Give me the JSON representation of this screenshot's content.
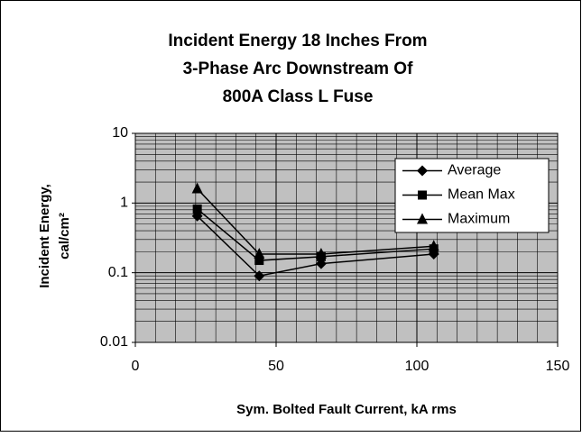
{
  "chart_data": {
    "type": "line",
    "title": [
      "Incident Energy 18 Inches From",
      "3-Phase Arc Downstream Of",
      "800A Class L Fuse"
    ],
    "xlabel": "Sym. Bolted Fault Current, kA rms",
    "ylabel": [
      "Incident Energy,",
      "cal/cm²"
    ],
    "x": [
      22,
      44,
      66,
      106
    ],
    "series": [
      {
        "name": "Average",
        "color": "#000000",
        "marker": "diamond",
        "values": [
          0.65,
          0.09,
          0.135,
          0.185
        ]
      },
      {
        "name": "Mean Max",
        "color": "#000000",
        "marker": "square",
        "values": [
          0.82,
          0.15,
          0.17,
          0.22
        ]
      },
      {
        "name": "Maximum",
        "color": "#000000",
        "marker": "triangle",
        "values": [
          1.6,
          0.185,
          0.185,
          0.24
        ]
      }
    ],
    "xlim": [
      0,
      150
    ],
    "xticks": [
      0,
      50,
      100,
      150
    ],
    "ylim": [
      0.01,
      10
    ],
    "yticks": [
      0.01,
      0.1,
      1,
      10
    ],
    "ylog": true,
    "grid": true,
    "minor_grid": true,
    "plot_background": "#c0c0c0",
    "legend": "upper right"
  }
}
